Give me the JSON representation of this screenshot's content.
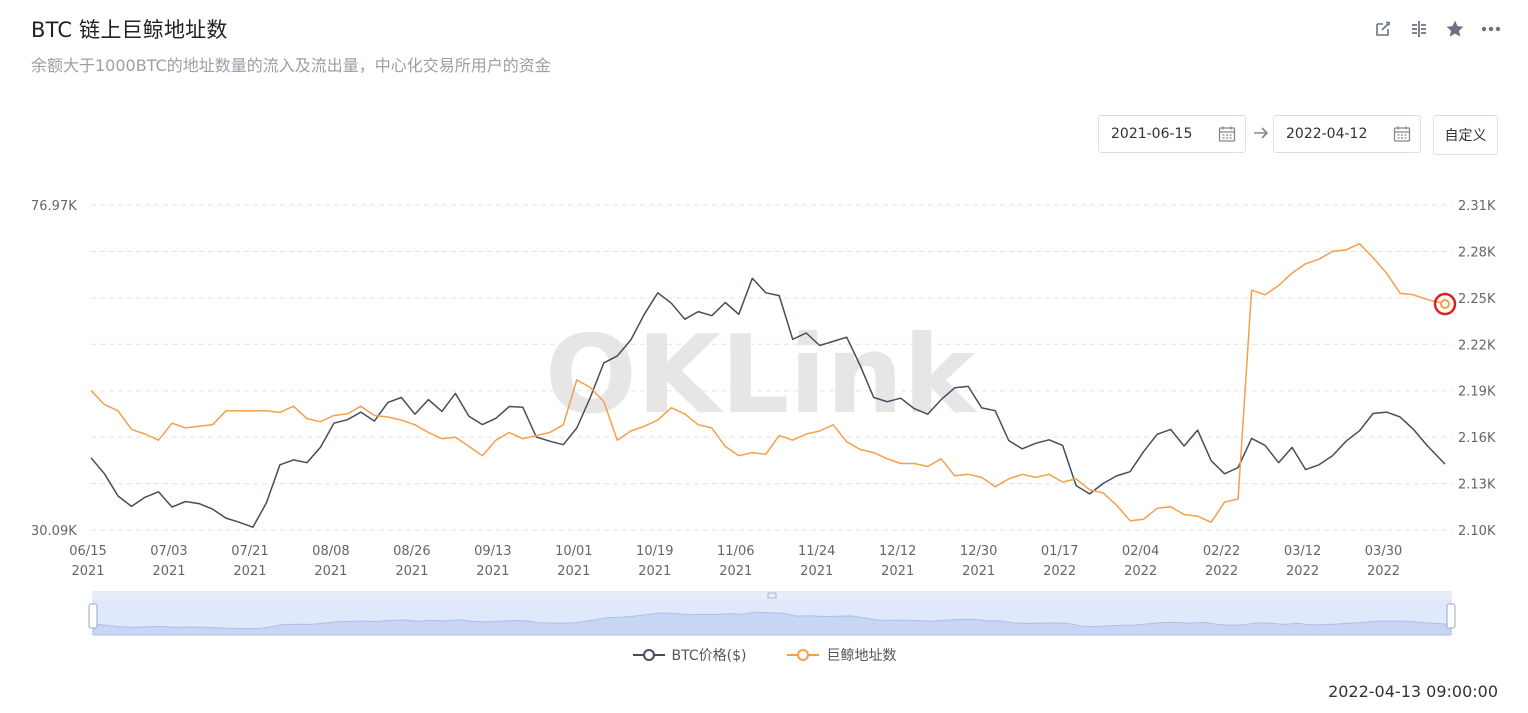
{
  "header": {
    "title": "BTC 链上巨鲸地址数",
    "subtitle": "余额大于1000BTC的地址数量的流入及流出量，中心化交易所用户的资金",
    "icons": [
      "edit-icon",
      "compare-icon",
      "star-icon",
      "more-icon"
    ]
  },
  "date_range": {
    "start": "2021-06-15",
    "end": "2022-04-12",
    "custom_label": "自定义"
  },
  "watermark": "OKLink",
  "timestamp": "2022-04-13 09:00:00",
  "legend": {
    "btc_label": "BTC价格($)",
    "whale_label": "巨鲸地址数"
  },
  "colors": {
    "btc": "#474c5e",
    "whale": "#f5a04a",
    "grid": "#e3e3e3",
    "slider_fill": "#dfe9fb",
    "slider_border": "#c9d6f0"
  },
  "chart_data": {
    "type": "line",
    "left_axis": {
      "ticks": [
        "76.97K",
        "",
        "",
        "",
        "",
        "",
        "",
        "30.09K"
      ],
      "range": [
        30090,
        76970
      ]
    },
    "right_axis": {
      "ticks": [
        "2.31K",
        "2.28K",
        "2.25K",
        "2.22K",
        "2.19K",
        "2.16K",
        "2.13K",
        "2.10K"
      ],
      "range": [
        2100,
        2310
      ]
    },
    "x_ticks": [
      {
        "date": "06/15",
        "year": "2021"
      },
      {
        "date": "07/03",
        "year": "2021"
      },
      {
        "date": "07/21",
        "year": "2021"
      },
      {
        "date": "08/08",
        "year": "2021"
      },
      {
        "date": "08/26",
        "year": "2021"
      },
      {
        "date": "09/13",
        "year": "2021"
      },
      {
        "date": "10/01",
        "year": "2021"
      },
      {
        "date": "10/19",
        "year": "2021"
      },
      {
        "date": "11/06",
        "year": "2021"
      },
      {
        "date": "11/24",
        "year": "2021"
      },
      {
        "date": "12/12",
        "year": "2021"
      },
      {
        "date": "12/30",
        "year": "2021"
      },
      {
        "date": "01/17",
        "year": "2022"
      },
      {
        "date": "02/04",
        "year": "2022"
      },
      {
        "date": "02/22",
        "year": "2022"
      },
      {
        "date": "03/12",
        "year": "2022"
      },
      {
        "date": "03/30",
        "year": "2022"
      }
    ],
    "x_start_date": "2021-06-15",
    "x_end_date": "2022-04-12",
    "grid": true,
    "series": [
      {
        "name": "BTC价格($)",
        "axis": "left",
        "dates": [
          "2021-06-15",
          "2021-06-18",
          "2021-06-21",
          "2021-06-24",
          "2021-06-27",
          "2021-06-30",
          "2021-07-03",
          "2021-07-06",
          "2021-07-09",
          "2021-07-12",
          "2021-07-15",
          "2021-07-18",
          "2021-07-21",
          "2021-07-24",
          "2021-07-27",
          "2021-07-30",
          "2021-08-02",
          "2021-08-05",
          "2021-08-08",
          "2021-08-11",
          "2021-08-14",
          "2021-08-17",
          "2021-08-20",
          "2021-08-23",
          "2021-08-26",
          "2021-08-29",
          "2021-09-01",
          "2021-09-04",
          "2021-09-07",
          "2021-09-10",
          "2021-09-13",
          "2021-09-16",
          "2021-09-19",
          "2021-09-22",
          "2021-09-25",
          "2021-09-28",
          "2021-10-01",
          "2021-10-04",
          "2021-10-07",
          "2021-10-10",
          "2021-10-13",
          "2021-10-16",
          "2021-10-19",
          "2021-10-22",
          "2021-10-25",
          "2021-10-28",
          "2021-10-31",
          "2021-11-03",
          "2021-11-06",
          "2021-11-09",
          "2021-11-12",
          "2021-11-15",
          "2021-11-18",
          "2021-11-21",
          "2021-11-24",
          "2021-11-27",
          "2021-11-30",
          "2021-12-03",
          "2021-12-06",
          "2021-12-09",
          "2021-12-12",
          "2021-12-15",
          "2021-12-18",
          "2021-12-21",
          "2021-12-24",
          "2021-12-27",
          "2021-12-30",
          "2022-01-02",
          "2022-01-05",
          "2022-01-08",
          "2022-01-11",
          "2022-01-14",
          "2022-01-17",
          "2022-01-20",
          "2022-01-23",
          "2022-01-26",
          "2022-01-29",
          "2022-02-01",
          "2022-02-04",
          "2022-02-07",
          "2022-02-10",
          "2022-02-13",
          "2022-02-16",
          "2022-02-19",
          "2022-02-22",
          "2022-02-25",
          "2022-02-28",
          "2022-03-03",
          "2022-03-06",
          "2022-03-09",
          "2022-03-12",
          "2022-03-15",
          "2022-03-18",
          "2022-03-21",
          "2022-03-24",
          "2022-03-27",
          "2022-03-30",
          "2022-04-02",
          "2022-04-05",
          "2022-04-08",
          "2022-04-12"
        ],
        "values": [
          40500,
          38200,
          35000,
          33500,
          34800,
          35600,
          33400,
          34200,
          33900,
          33100,
          31800,
          31200,
          30500,
          34000,
          39500,
          40200,
          39800,
          42000,
          45500,
          46000,
          47100,
          45800,
          48500,
          49200,
          46800,
          48900,
          47200,
          49800,
          46500,
          45300,
          46200,
          47900,
          47800,
          43500,
          42900,
          42400,
          44800,
          49200,
          54200,
          55200,
          57500,
          61200,
          64300,
          62800,
          60500,
          61600,
          61000,
          62900,
          61200,
          66400,
          64300,
          63900,
          57600,
          58500,
          56700,
          57300,
          57900,
          53800,
          49200,
          48600,
          49100,
          47600,
          46800,
          48900,
          50600,
          50800,
          47700,
          47300,
          43000,
          41800,
          42600,
          43100,
          42300,
          36500,
          35300,
          36800,
          37900,
          38500,
          41400,
          43900,
          44600,
          42200,
          44500,
          40100,
          38200,
          39100,
          43300,
          42300,
          39800,
          42000,
          38800,
          39500,
          40800,
          42900,
          44400,
          46900,
          47100,
          46400,
          44600,
          42300,
          39600
        ]
      },
      {
        "name": "巨鲸地址数",
        "axis": "right",
        "dates": [
          "2021-06-15",
          "2021-06-18",
          "2021-06-21",
          "2021-06-24",
          "2021-06-27",
          "2021-06-30",
          "2021-07-03",
          "2021-07-06",
          "2021-07-09",
          "2021-07-12",
          "2021-07-15",
          "2021-07-18",
          "2021-07-21",
          "2021-07-24",
          "2021-07-27",
          "2021-07-30",
          "2021-08-02",
          "2021-08-05",
          "2021-08-08",
          "2021-08-11",
          "2021-08-14",
          "2021-08-17",
          "2021-08-20",
          "2021-08-23",
          "2021-08-26",
          "2021-08-29",
          "2021-09-01",
          "2021-09-04",
          "2021-09-07",
          "2021-09-10",
          "2021-09-13",
          "2021-09-16",
          "2021-09-19",
          "2021-09-22",
          "2021-09-25",
          "2021-09-28",
          "2021-10-01",
          "2021-10-04",
          "2021-10-07",
          "2021-10-10",
          "2021-10-13",
          "2021-10-16",
          "2021-10-19",
          "2021-10-22",
          "2021-10-25",
          "2021-10-28",
          "2021-10-31",
          "2021-11-03",
          "2021-11-06",
          "2021-11-09",
          "2021-11-12",
          "2021-11-15",
          "2021-11-18",
          "2021-11-21",
          "2021-11-24",
          "2021-11-27",
          "2021-11-30",
          "2021-12-03",
          "2021-12-06",
          "2021-12-09",
          "2021-12-12",
          "2021-12-15",
          "2021-12-18",
          "2021-12-21",
          "2021-12-24",
          "2021-12-27",
          "2021-12-30",
          "2022-01-02",
          "2022-01-05",
          "2022-01-08",
          "2022-01-11",
          "2022-01-14",
          "2022-01-17",
          "2022-01-20",
          "2022-01-23",
          "2022-01-26",
          "2022-01-29",
          "2022-02-01",
          "2022-02-04",
          "2022-02-07",
          "2022-02-10",
          "2022-02-13",
          "2022-02-16",
          "2022-02-19",
          "2022-02-22",
          "2022-02-25",
          "2022-02-28",
          "2022-03-03",
          "2022-03-06",
          "2022-03-09",
          "2022-03-12",
          "2022-03-15",
          "2022-03-18",
          "2022-03-21",
          "2022-03-24",
          "2022-03-27",
          "2022-03-30",
          "2022-04-02",
          "2022-04-05",
          "2022-04-08",
          "2022-04-12"
        ],
        "values": [
          2190,
          2181,
          2177,
          2165,
          2162,
          2158,
          2169,
          2166,
          2167,
          2168,
          2177,
          2177,
          2177,
          2177,
          2176,
          2180,
          2172,
          2170,
          2174,
          2175,
          2180,
          2174,
          2173,
          2171,
          2168,
          2163,
          2159,
          2160,
          2154,
          2148,
          2158,
          2163,
          2159,
          2161,
          2163,
          2168,
          2197,
          2192,
          2183,
          2158,
          2164,
          2167,
          2171,
          2179,
          2175,
          2168,
          2166,
          2154,
          2148,
          2150,
          2149,
          2161,
          2158,
          2162,
          2164,
          2168,
          2157,
          2152,
          2150,
          2146,
          2143,
          2143,
          2141,
          2146,
          2135,
          2136,
          2134,
          2128,
          2133,
          2136,
          2134,
          2136,
          2131,
          2133,
          2126,
          2124,
          2116,
          2106,
          2107,
          2114,
          2115,
          2110,
          2109,
          2105,
          2118,
          2120,
          2255,
          2252,
          2258,
          2266,
          2272,
          2275,
          2280,
          2281,
          2285,
          2276,
          2266,
          2253,
          2252,
          2249,
          2246
        ]
      }
    ]
  }
}
